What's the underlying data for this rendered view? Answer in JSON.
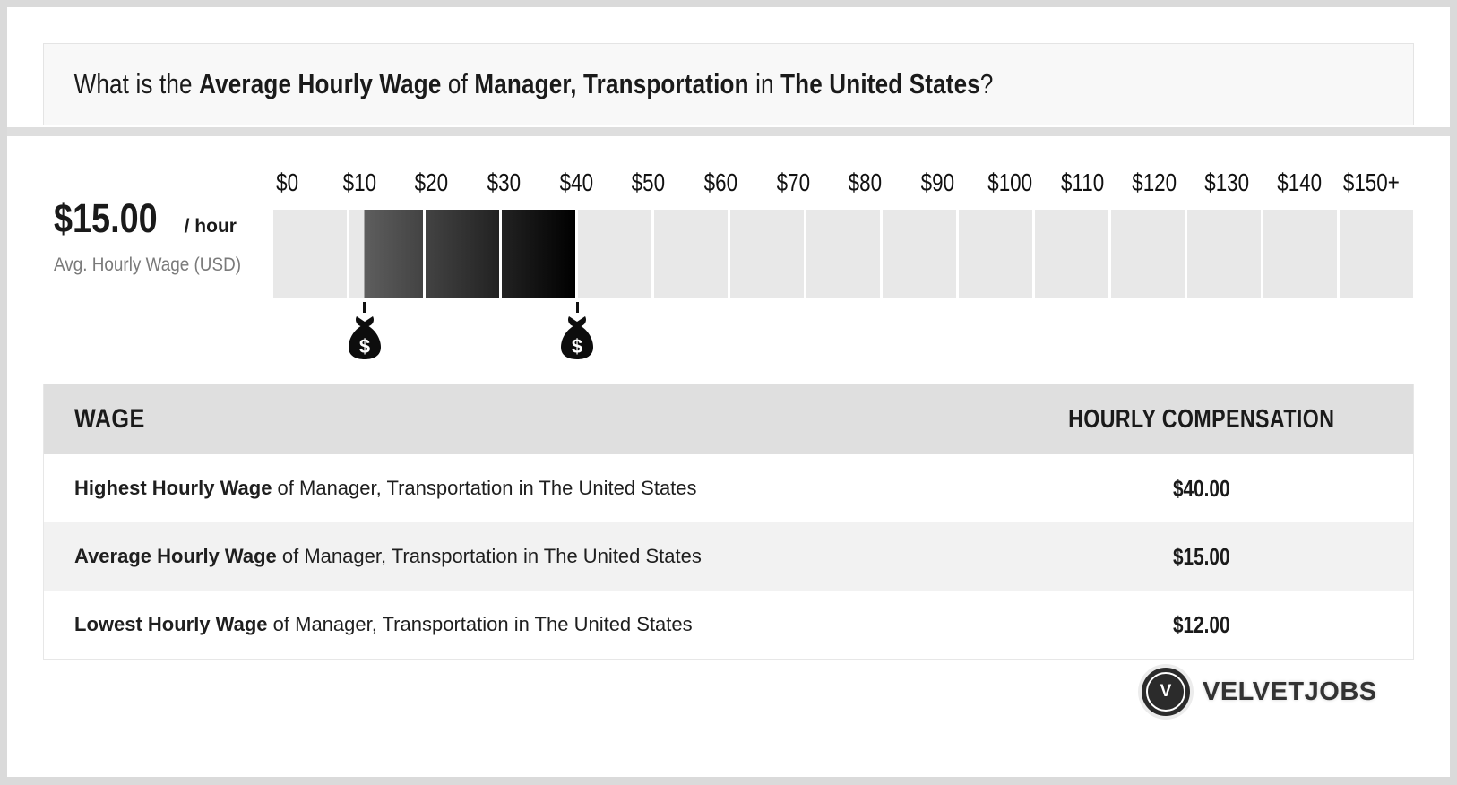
{
  "header": {
    "title_parts": [
      {
        "text": "What is the ",
        "bold": false
      },
      {
        "text": "Average Hourly Wage",
        "bold": true
      },
      {
        "text": " of ",
        "bold": false
      },
      {
        "text": "Manager, Transportation",
        "bold": true
      },
      {
        "text": " in ",
        "bold": false
      },
      {
        "text": "The United States",
        "bold": true
      },
      {
        "text": "?",
        "bold": false
      }
    ]
  },
  "wage_summary": {
    "amount": "$15.00",
    "per": "/ hour",
    "caption": "Avg. Hourly Wage (USD)"
  },
  "chart_data": {
    "type": "bar",
    "subtype": "wage-range-scale",
    "title": "Hourly wage range of Manager, Transportation in The United States (USD)",
    "axis_ticks": [
      "$0",
      "$10",
      "$20",
      "$30",
      "$40",
      "$50",
      "$60",
      "$70",
      "$80",
      "$90",
      "$100",
      "$110",
      "$120",
      "$130",
      "$140",
      "$150+"
    ],
    "axis_min": 0,
    "axis_max": 150,
    "segment_step": 10,
    "fill_start": 12,
    "fill_end": 40,
    "markers": [
      {
        "value": 12,
        "icon": "money-bag-icon",
        "glyph": "$"
      },
      {
        "value": 40,
        "icon": "money-bag-icon",
        "glyph": "$"
      }
    ],
    "values": {
      "highest": 40,
      "average": 15,
      "lowest": 12
    },
    "colors": {
      "segment_empty": "#e8e8e8",
      "fill_gradient_start": "#5e5e5e",
      "fill_gradient_end": "#000000",
      "marker": "#111111"
    },
    "legend_position": "none",
    "grid": false
  },
  "table": {
    "headers": [
      "WAGE",
      "HOURLY COMPENSATION"
    ],
    "rows": [
      {
        "bold": "Highest Hourly Wage",
        "rest": " of Manager, Transportation in The United States",
        "value": "$40.00"
      },
      {
        "bold": "Average Hourly Wage",
        "rest": " of Manager, Transportation in The United States",
        "value": "$15.00"
      },
      {
        "bold": "Lowest Hourly Wage",
        "rest": " of Manager, Transportation in The United States",
        "value": "$12.00"
      }
    ]
  },
  "footer": {
    "badge_letter": "V",
    "brand": "VELVETJOBS"
  }
}
